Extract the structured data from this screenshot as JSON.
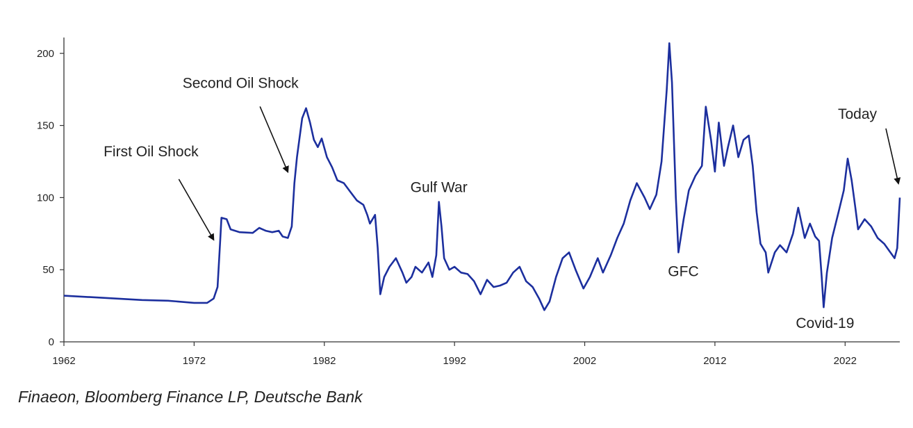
{
  "chart_data": {
    "type": "line",
    "title": "",
    "xlabel": "",
    "ylabel": "",
    "xlim": [
      1962,
      2026.2
    ],
    "ylim": [
      0,
      210
    ],
    "x_ticks": [
      1962,
      1972,
      1982,
      1992,
      2002,
      2012,
      2022
    ],
    "y_ticks": [
      0,
      50,
      100,
      150,
      200
    ],
    "grid": false,
    "legend": "none",
    "line_color": "#1c2f9e",
    "series": [
      {
        "points": [
          [
            1962.0,
            32
          ],
          [
            1964.0,
            31
          ],
          [
            1966.0,
            30
          ],
          [
            1968.0,
            29
          ],
          [
            1970.0,
            28.5
          ],
          [
            1972.0,
            27
          ],
          [
            1973.0,
            27
          ],
          [
            1973.5,
            30
          ],
          [
            1973.8,
            38
          ],
          [
            1974.0,
            70
          ],
          [
            1974.1,
            86
          ],
          [
            1974.5,
            85
          ],
          [
            1974.8,
            78
          ],
          [
            1975.5,
            76
          ],
          [
            1976.5,
            75.5
          ],
          [
            1977.0,
            79
          ],
          [
            1977.5,
            77
          ],
          [
            1978.0,
            76
          ],
          [
            1978.5,
            77
          ],
          [
            1978.8,
            73
          ],
          [
            1979.2,
            72
          ],
          [
            1979.5,
            80
          ],
          [
            1979.7,
            110
          ],
          [
            1979.9,
            128
          ],
          [
            1980.3,
            155
          ],
          [
            1980.6,
            162
          ],
          [
            1980.9,
            152
          ],
          [
            1981.2,
            140
          ],
          [
            1981.5,
            135
          ],
          [
            1981.8,
            141
          ],
          [
            1982.2,
            128
          ],
          [
            1982.6,
            121
          ],
          [
            1983.0,
            112
          ],
          [
            1983.5,
            110
          ],
          [
            1984.0,
            104
          ],
          [
            1984.5,
            98
          ],
          [
            1985.0,
            95
          ],
          [
            1985.3,
            88
          ],
          [
            1985.5,
            82
          ],
          [
            1985.9,
            88
          ],
          [
            1986.1,
            65
          ],
          [
            1986.3,
            33
          ],
          [
            1986.6,
            45
          ],
          [
            1987.0,
            52
          ],
          [
            1987.5,
            58
          ],
          [
            1988.0,
            48
          ],
          [
            1988.3,
            41
          ],
          [
            1988.7,
            45
          ],
          [
            1989.0,
            52
          ],
          [
            1989.5,
            48
          ],
          [
            1990.0,
            55
          ],
          [
            1990.3,
            45
          ],
          [
            1990.6,
            60
          ],
          [
            1990.8,
            97
          ],
          [
            1991.0,
            80
          ],
          [
            1991.2,
            58
          ],
          [
            1991.6,
            50
          ],
          [
            1992.0,
            52
          ],
          [
            1992.5,
            48
          ],
          [
            1993.0,
            47
          ],
          [
            1993.5,
            42
          ],
          [
            1994.0,
            33
          ],
          [
            1994.5,
            43
          ],
          [
            1995.0,
            38
          ],
          [
            1995.5,
            39
          ],
          [
            1996.0,
            41
          ],
          [
            1996.5,
            48
          ],
          [
            1997.0,
            52
          ],
          [
            1997.5,
            42
          ],
          [
            1998.0,
            38
          ],
          [
            1998.5,
            30
          ],
          [
            1998.9,
            22
          ],
          [
            1999.3,
            28
          ],
          [
            1999.8,
            45
          ],
          [
            2000.3,
            58
          ],
          [
            2000.8,
            62
          ],
          [
            2001.3,
            50
          ],
          [
            2001.9,
            37
          ],
          [
            2002.4,
            45
          ],
          [
            2003.0,
            58
          ],
          [
            2003.4,
            48
          ],
          [
            2004.0,
            60
          ],
          [
            2004.5,
            72
          ],
          [
            2005.0,
            82
          ],
          [
            2005.5,
            98
          ],
          [
            2006.0,
            110
          ],
          [
            2006.6,
            100
          ],
          [
            2007.0,
            92
          ],
          [
            2007.5,
            102
          ],
          [
            2007.9,
            125
          ],
          [
            2008.3,
            175
          ],
          [
            2008.5,
            207
          ],
          [
            2008.7,
            180
          ],
          [
            2009.0,
            100
          ],
          [
            2009.2,
            62
          ],
          [
            2009.6,
            85
          ],
          [
            2010.0,
            105
          ],
          [
            2010.5,
            115
          ],
          [
            2011.0,
            122
          ],
          [
            2011.3,
            163
          ],
          [
            2011.7,
            140
          ],
          [
            2012.0,
            118
          ],
          [
            2012.3,
            152
          ],
          [
            2012.7,
            122
          ],
          [
            2013.0,
            135
          ],
          [
            2013.4,
            150
          ],
          [
            2013.8,
            128
          ],
          [
            2014.2,
            140
          ],
          [
            2014.6,
            143
          ],
          [
            2014.9,
            122
          ],
          [
            2015.2,
            90
          ],
          [
            2015.5,
            68
          ],
          [
            2015.9,
            62
          ],
          [
            2016.1,
            48
          ],
          [
            2016.6,
            62
          ],
          [
            2017.0,
            67
          ],
          [
            2017.5,
            62
          ],
          [
            2018.0,
            75
          ],
          [
            2018.4,
            93
          ],
          [
            2018.9,
            72
          ],
          [
            2019.3,
            82
          ],
          [
            2019.7,
            73
          ],
          [
            2020.0,
            70
          ],
          [
            2020.2,
            45
          ],
          [
            2020.35,
            24
          ],
          [
            2020.6,
            48
          ],
          [
            2021.0,
            72
          ],
          [
            2021.5,
            90
          ],
          [
            2021.9,
            105
          ],
          [
            2022.2,
            127
          ],
          [
            2022.5,
            112
          ],
          [
            2022.8,
            92
          ],
          [
            2023.0,
            78
          ],
          [
            2023.5,
            85
          ],
          [
            2024.0,
            80
          ],
          [
            2024.5,
            72
          ],
          [
            2025.0,
            68
          ],
          [
            2025.4,
            63
          ],
          [
            2025.8,
            58
          ],
          [
            2026.0,
            65
          ],
          [
            2026.2,
            100
          ]
        ]
      }
    ],
    "annotations": [
      {
        "text": "First Oil Shock",
        "x": 1973.6,
        "y": 67
      },
      {
        "text": "Second Oil Shock",
        "x": 1979.3,
        "y": 114
      },
      {
        "text": "Gulf War",
        "x": 1990.8,
        "y": 97
      },
      {
        "text": "GFC",
        "x": 2009.2,
        "y": 62
      },
      {
        "text": "Covid-19",
        "x": 2020.35,
        "y": 24
      },
      {
        "text": "Today",
        "x": 2026.2,
        "y": 106
      }
    ]
  },
  "source": "Finaeon, Bloomberg Finance LP, Deutsche Bank"
}
